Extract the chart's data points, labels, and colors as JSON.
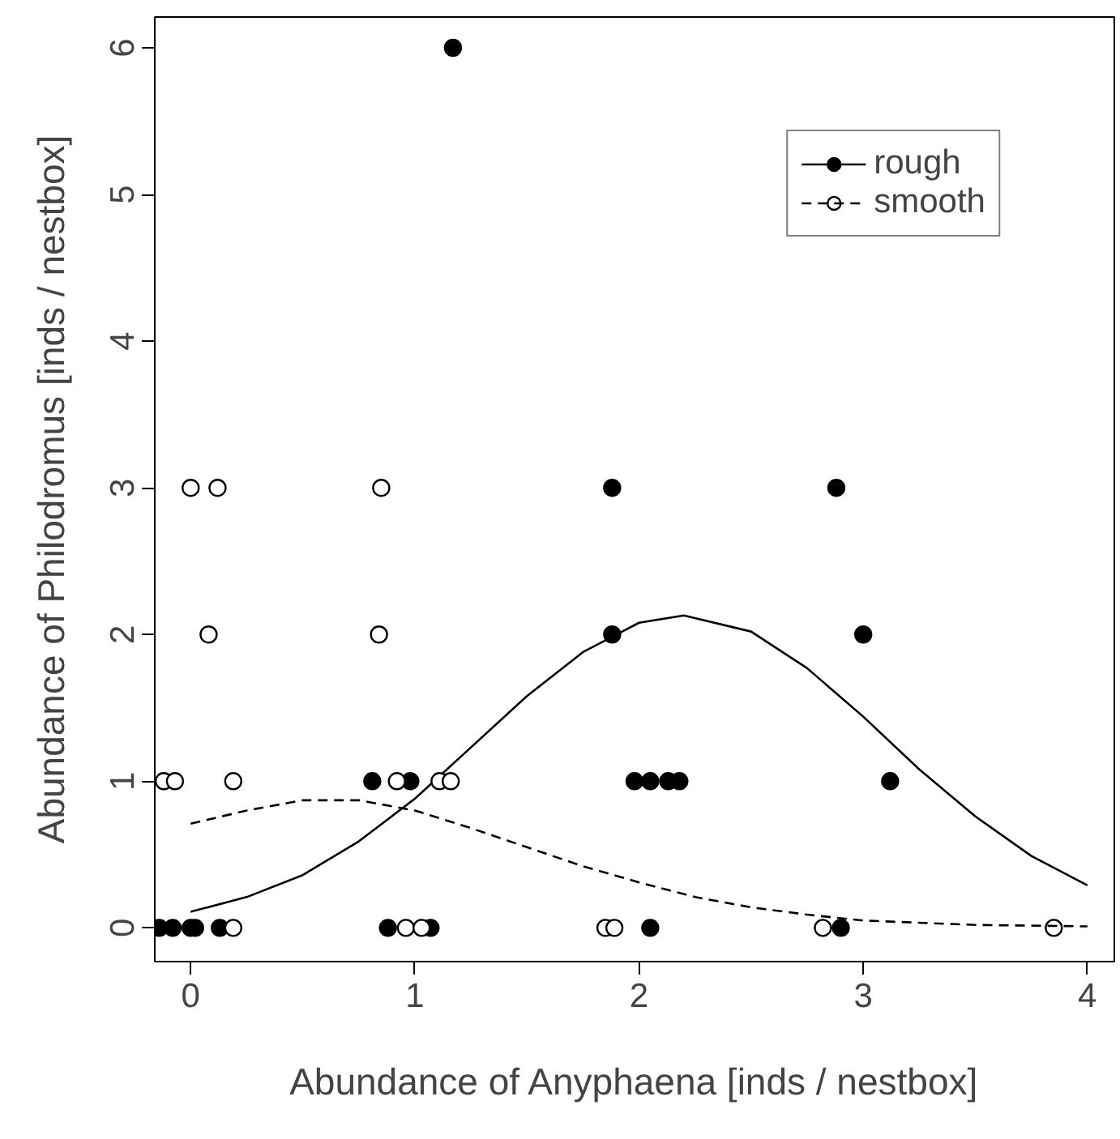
{
  "chart_data": {
    "type": "scatter",
    "xlabel": "Abundance of Anyphaena [inds / nestbox]",
    "ylabel": "Abundance of Philodromus [inds / nestbox]",
    "xlim": [
      -0.16,
      4.12
    ],
    "ylim": [
      -0.23,
      6.21
    ],
    "xticks": [
      0,
      1,
      2,
      3,
      4
    ],
    "yticks": [
      0,
      1,
      2,
      3,
      4,
      5,
      6
    ],
    "grid": false,
    "legend": "top right",
    "series": [
      {
        "name": "rough",
        "marker": "circle",
        "color": "#000000",
        "x": [
          1.17,
          1.88,
          2.88,
          1.88,
          3.0,
          0.81,
          0.98,
          1.98,
          2.05,
          2.13,
          2.18,
          3.12,
          -0.14,
          -0.08,
          0.0,
          0.02,
          0.13,
          0.88,
          1.07,
          2.05,
          2.9
        ],
        "values": [
          6,
          3,
          3,
          2,
          2,
          1,
          1,
          1,
          1,
          1,
          1,
          1,
          0,
          0,
          0,
          0,
          0,
          0,
          0,
          0,
          0
        ]
      },
      {
        "type": "line",
        "marker": "none",
        "color": "#000000",
        "line_style": "solid",
        "x": [
          0,
          0.25,
          0.5,
          0.75,
          1,
          1.25,
          1.5,
          1.75,
          2,
          2.2,
          2.5,
          2.75,
          3,
          3.25,
          3.5,
          3.75,
          4
        ],
        "values": [
          0.11,
          0.21,
          0.36,
          0.59,
          0.88,
          1.23,
          1.58,
          1.88,
          2.08,
          2.13,
          2.02,
          1.77,
          1.44,
          1.08,
          0.76,
          0.49,
          0.29
        ]
      },
      {
        "name": "smooth",
        "marker": "circle",
        "color": "#ffffff",
        "x": [
          0.0,
          0.12,
          0.85,
          0.08,
          0.84,
          -0.12,
          -0.07,
          0.19,
          0.92,
          1.11,
          1.16,
          0.19,
          0.96,
          1.03,
          1.85,
          1.89,
          2.82,
          3.85
        ],
        "values": [
          3,
          3,
          3,
          2,
          2,
          1,
          1,
          1,
          1,
          1,
          1,
          0,
          0,
          0,
          0,
          0,
          0,
          0
        ]
      },
      {
        "type": "line",
        "marker": "none",
        "color": "#000000",
        "line_style": "dashed",
        "x": [
          0,
          0.25,
          0.5,
          0.75,
          1,
          1.25,
          1.5,
          1.75,
          2,
          2.25,
          2.5,
          2.75,
          3,
          3.5,
          4
        ],
        "values": [
          0.71,
          0.8,
          0.87,
          0.87,
          0.8,
          0.68,
          0.55,
          0.42,
          0.31,
          0.21,
          0.14,
          0.09,
          0.05,
          0.02,
          0.01
        ]
      }
    ]
  }
}
